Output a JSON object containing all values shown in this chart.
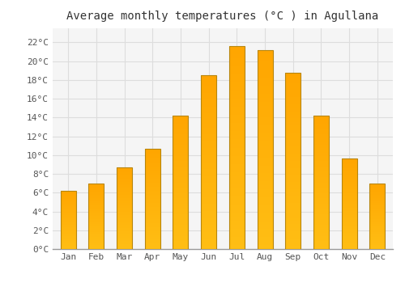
{
  "title": "Average monthly temperatures (°C ) in Agullana",
  "months": [
    "Jan",
    "Feb",
    "Mar",
    "Apr",
    "May",
    "Jun",
    "Jul",
    "Aug",
    "Sep",
    "Oct",
    "Nov",
    "Dec"
  ],
  "temperatures": [
    6.2,
    7.0,
    8.7,
    10.7,
    14.2,
    18.5,
    21.6,
    21.2,
    18.8,
    14.2,
    9.6,
    7.0
  ],
  "bar_color_top": "#FFB833",
  "bar_color_bottom": "#FFA500",
  "bar_edge_color": "#B8860B",
  "background_color": "#FFFFFF",
  "plot_bg_color": "#F5F5F5",
  "grid_color": "#DDDDDD",
  "yticks": [
    0,
    2,
    4,
    6,
    8,
    10,
    12,
    14,
    16,
    18,
    20,
    22
  ],
  "ylim": [
    0,
    23.5
  ],
  "title_fontsize": 10,
  "tick_fontsize": 8,
  "title_color": "#333333",
  "tick_color": "#555555",
  "bar_width": 0.55
}
